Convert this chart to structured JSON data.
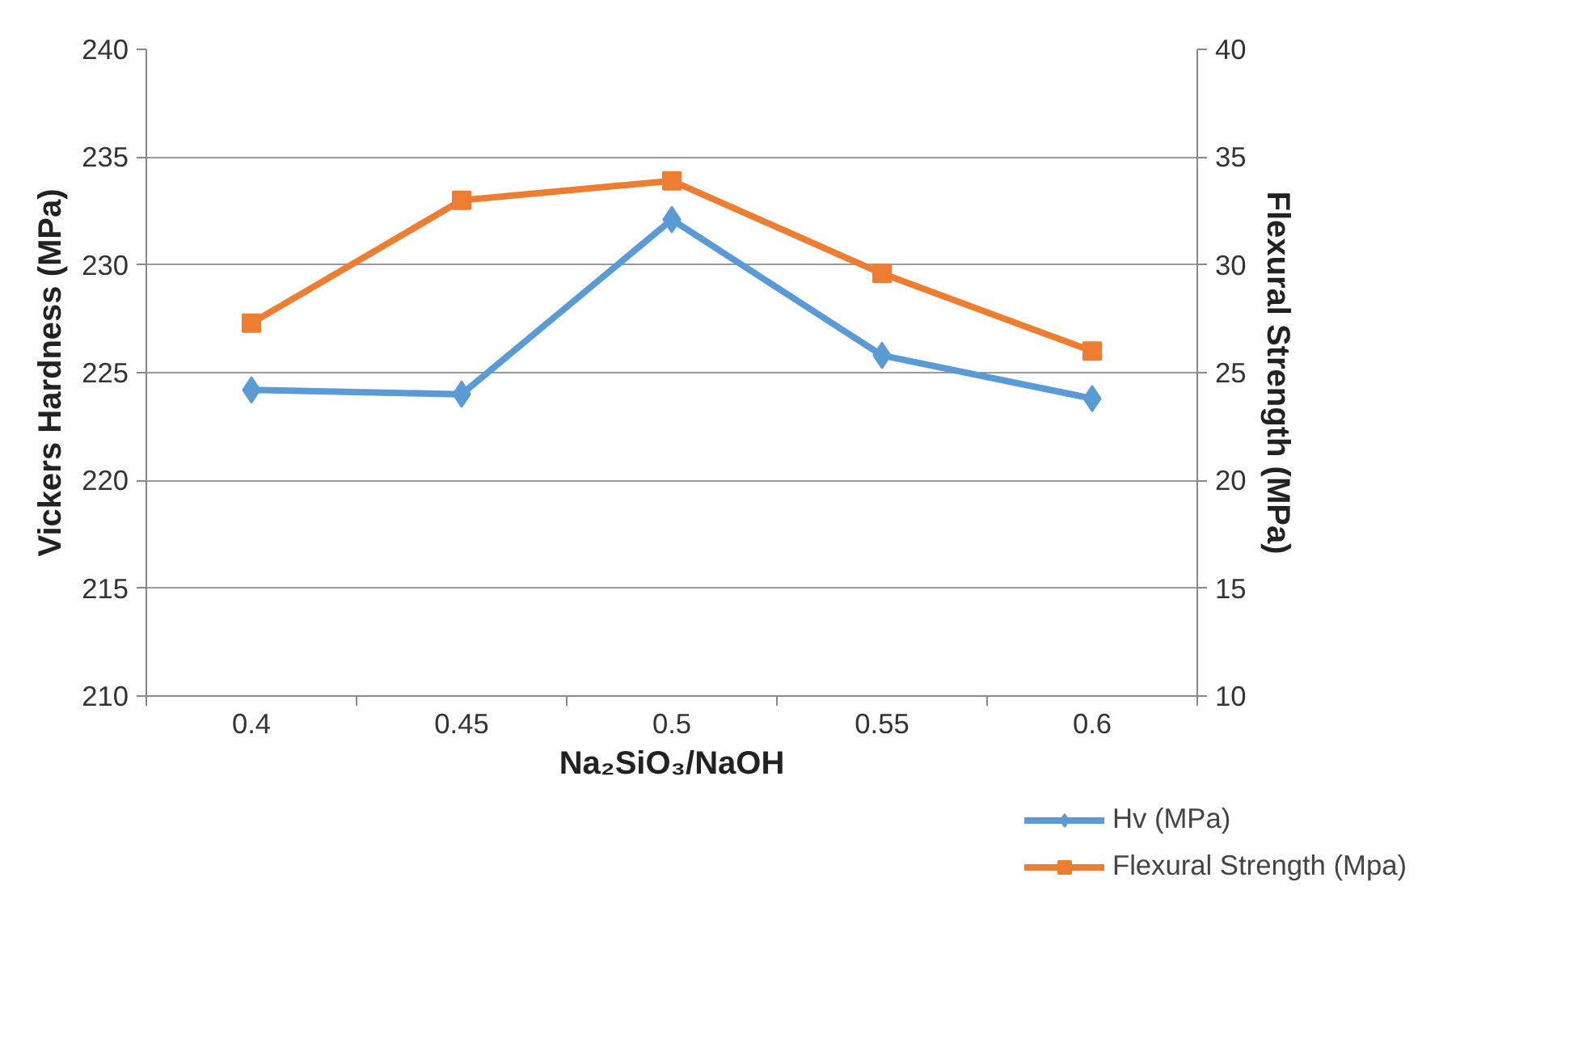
{
  "chart_data": {
    "type": "line",
    "xlabel": "Na₂SiO₃/NaOH",
    "ylabel": "Vickers Hardness (MPa)",
    "y2label": "Flexural Strength (MPa)",
    "categories": [
      "0.4",
      "0.45",
      "0.5",
      "0.55",
      "0.6"
    ],
    "series": [
      {
        "name": "Hv (MPa)",
        "color": "#5b9bd5",
        "marker": "diamond",
        "values": [
          224.2,
          224.0,
          232.1,
          225.8,
          223.8
        ]
      },
      {
        "name": "Flexural Strength (Mpa)",
        "color": "#ed7d31",
        "marker": "square",
        "axis": "y2",
        "values": [
          27.3,
          33.0,
          33.9,
          29.6,
          26.0
        ]
      }
    ],
    "ylim": [
      210,
      240
    ],
    "yticks": [
      210,
      215,
      220,
      225,
      230,
      235,
      240
    ],
    "y2lim": [
      10,
      40
    ],
    "y2ticks": [
      10,
      15,
      20,
      25,
      30,
      35,
      40
    ],
    "grid": "y",
    "legend": "bottom right",
    "line_style": "solid"
  }
}
